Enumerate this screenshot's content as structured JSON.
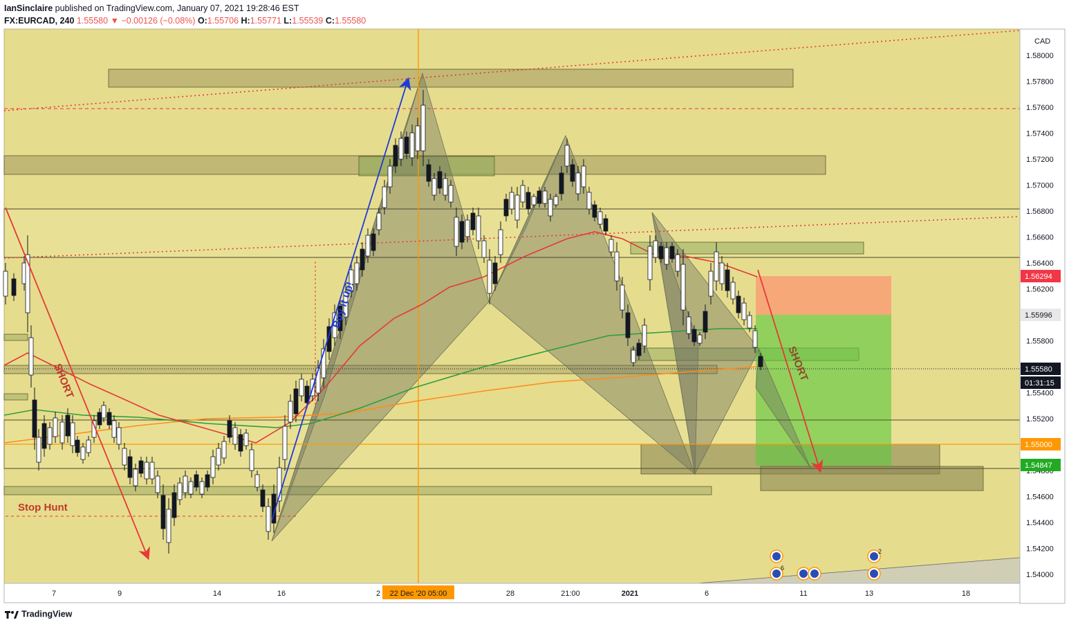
{
  "header": {
    "publisher": "IanSinclaire",
    "published_text": "published on TradingView.com, January 07, 2021 19:28:46 EST",
    "symbol": "FX:EURCAD, 240",
    "last": "1.55580",
    "change": "−0.00126 (−0.08%)",
    "o_label": "O:",
    "o_value": "1.55706",
    "h_label": "H:",
    "h_value": "1.55771",
    "l_label": "L:",
    "l_value": "1.55539",
    "c_label": "C:",
    "c_value": "1.55580"
  },
  "footer": {
    "brand": "TradingView"
  },
  "chart_data": {
    "type": "candlestick",
    "currency_label": "CAD",
    "ylim": [
      1.5393,
      1.5812
    ],
    "y_ticks": [
      "1.58000",
      "1.57800",
      "1.57600",
      "1.57400",
      "1.57200",
      "1.57000",
      "1.56800",
      "1.56600",
      "1.56400",
      "1.56200",
      "1.56000",
      "1.55800",
      "1.55600",
      "1.55400",
      "1.55200",
      "1.55000",
      "1.54800",
      "1.54600",
      "1.54400",
      "1.54200",
      "1.54000"
    ],
    "x_ticks": [
      "7",
      "9",
      "14",
      "16",
      "2",
      "28",
      "21:00",
      "2021",
      "6",
      "11",
      "13",
      "18"
    ],
    "x_highlight": "22 Dec '20   05:00",
    "price_labels": [
      {
        "value": "1.56294",
        "color": "#f23645"
      },
      {
        "value": "1.55996",
        "color": "#e8e8e8"
      },
      {
        "value": "1.55580",
        "color": "#131722"
      },
      {
        "value": "01:31:15",
        "color": "#131722"
      },
      {
        "value": "1.55000",
        "color": "#ff9800"
      },
      {
        "value": "1.54847",
        "color": "#22ab22"
      }
    ],
    "annotations": [
      "SHORT",
      "Stop Hunt",
      "Buy it up!",
      "SHORT"
    ],
    "event_badges": [
      "6",
      "2"
    ],
    "colors": {
      "background": "#e6dc8e",
      "ma_fast": "#e53935",
      "ma_mid": "#2e9d3a",
      "ma_slow": "#ff8c1a",
      "pattern": "#8c8f74",
      "buy_arrow": "#1e3ad8",
      "sell_arrow": "#e53935"
    }
  }
}
